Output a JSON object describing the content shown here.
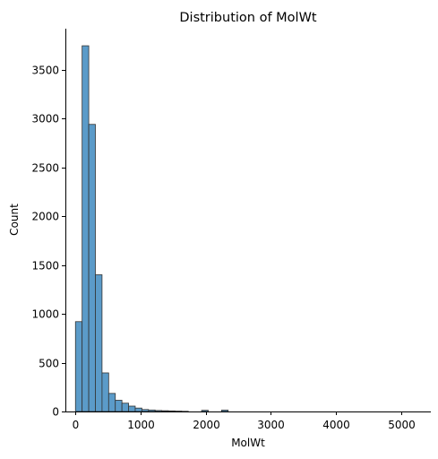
{
  "chart_data": {
    "type": "bar",
    "title": "Distribution of MolWt",
    "xlabel": "MolWt",
    "ylabel": "Count",
    "xlim": [
      -155,
      5460
    ],
    "ylim": [
      0,
      3920
    ],
    "xticks": [
      0,
      1000,
      2000,
      3000,
      4000,
      5000
    ],
    "yticks": [
      0,
      500,
      1000,
      1500,
      2000,
      2500,
      3000,
      3500
    ],
    "grid": false,
    "bar_color": "#5b9bc9",
    "edge_color": "#333333",
    "bin_width": 102,
    "bins": [
      {
        "x0": 0,
        "count": 920
      },
      {
        "x0": 102,
        "count": 3745
      },
      {
        "x0": 204,
        "count": 2940
      },
      {
        "x0": 306,
        "count": 1400
      },
      {
        "x0": 408,
        "count": 395
      },
      {
        "x0": 510,
        "count": 185
      },
      {
        "x0": 612,
        "count": 115
      },
      {
        "x0": 714,
        "count": 85
      },
      {
        "x0": 816,
        "count": 55
      },
      {
        "x0": 918,
        "count": 35
      },
      {
        "x0": 1020,
        "count": 20
      },
      {
        "x0": 1122,
        "count": 15
      },
      {
        "x0": 1224,
        "count": 10
      },
      {
        "x0": 1326,
        "count": 8
      },
      {
        "x0": 1428,
        "count": 6
      },
      {
        "x0": 1530,
        "count": 4
      },
      {
        "x0": 1632,
        "count": 2
      },
      {
        "x0": 1938,
        "count": 12
      },
      {
        "x0": 2244,
        "count": 14
      }
    ]
  }
}
